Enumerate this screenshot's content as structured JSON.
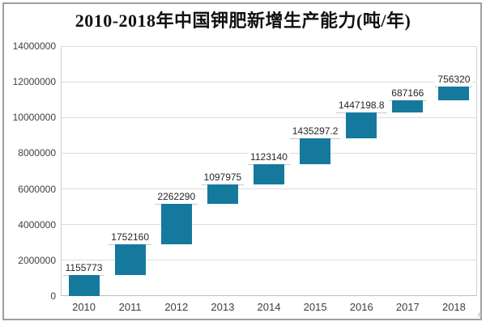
{
  "page": {
    "background": "#ffffff",
    "frame_border_color": "#9e9e9e"
  },
  "watermark_fragment": "e",
  "chart_data": {
    "type": "bar",
    "subtype": "waterfall",
    "title": "2010-2018年中国钾肥新增生产能力(吨/年)",
    "categories": [
      "2010",
      "2011",
      "2012",
      "2013",
      "2014",
      "2015",
      "2016",
      "2017",
      "2018"
    ],
    "values": [
      1155773,
      1752160,
      2262290,
      1097975,
      1123140,
      1435297.2,
      1447198.8,
      687166,
      756320
    ],
    "value_labels": [
      "1155773",
      "1752160",
      "2262290",
      "1097975",
      "1123140",
      "1435297.2",
      "1447198.8",
      "687166",
      "756320"
    ],
    "cumulative_end": [
      1155773,
      2907933,
      5170223,
      6268198,
      7391338,
      8826635.2,
      10273834,
      10961000,
      11717320
    ],
    "xlabel": "",
    "ylabel": "",
    "ylim": [
      0,
      14000000
    ],
    "yticks": [
      0,
      2000000,
      4000000,
      6000000,
      8000000,
      10000000,
      12000000,
      14000000
    ],
    "ytick_labels": [
      "0",
      "2000000",
      "4000000",
      "6000000",
      "8000000",
      "10000000",
      "12000000",
      "14000000"
    ],
    "grid": true,
    "legend": false,
    "bar_color": "#15799e",
    "label_color": "#262626",
    "axis_text_color": "#3f3f3f",
    "gridline_color": "#dcdcdc"
  }
}
